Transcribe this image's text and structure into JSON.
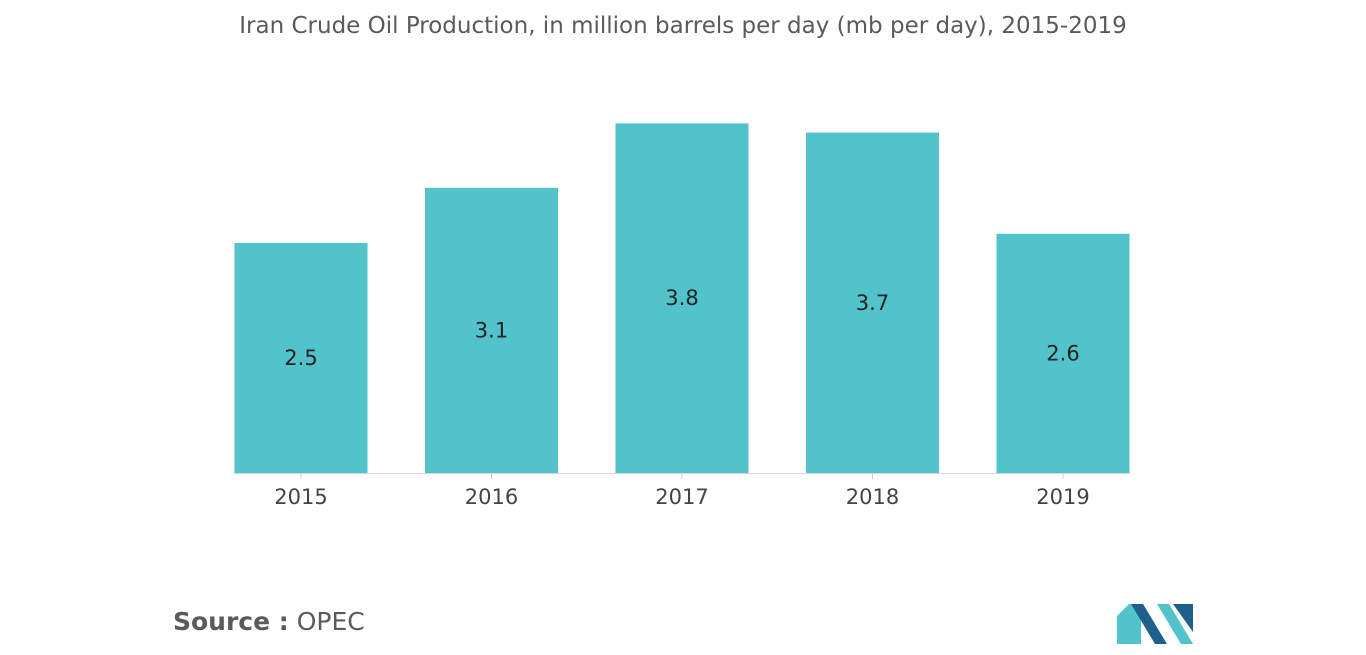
{
  "chart_data": {
    "type": "bar",
    "title": "Iran Crude Oil Production, in million barrels per day (mb per day), 2015-2019",
    "categories": [
      "2015",
      "2016",
      "2017",
      "2018",
      "2019"
    ],
    "values": [
      2.5,
      3.1,
      3.8,
      3.7,
      2.6
    ],
    "value_labels": [
      "2.5",
      "3.1",
      "3.8",
      "3.7",
      "2.6"
    ],
    "xlabel": "",
    "ylabel": "",
    "ylim": [
      0,
      4
    ],
    "grid": false,
    "bar_color": "#52c3ca"
  },
  "source": {
    "label": "Source :",
    "value": "OPEC"
  },
  "logo": {
    "icon": "mordor-intelligence-logo-icon",
    "color_dark": "#1e5f8c",
    "color_light": "#52c3ca"
  }
}
